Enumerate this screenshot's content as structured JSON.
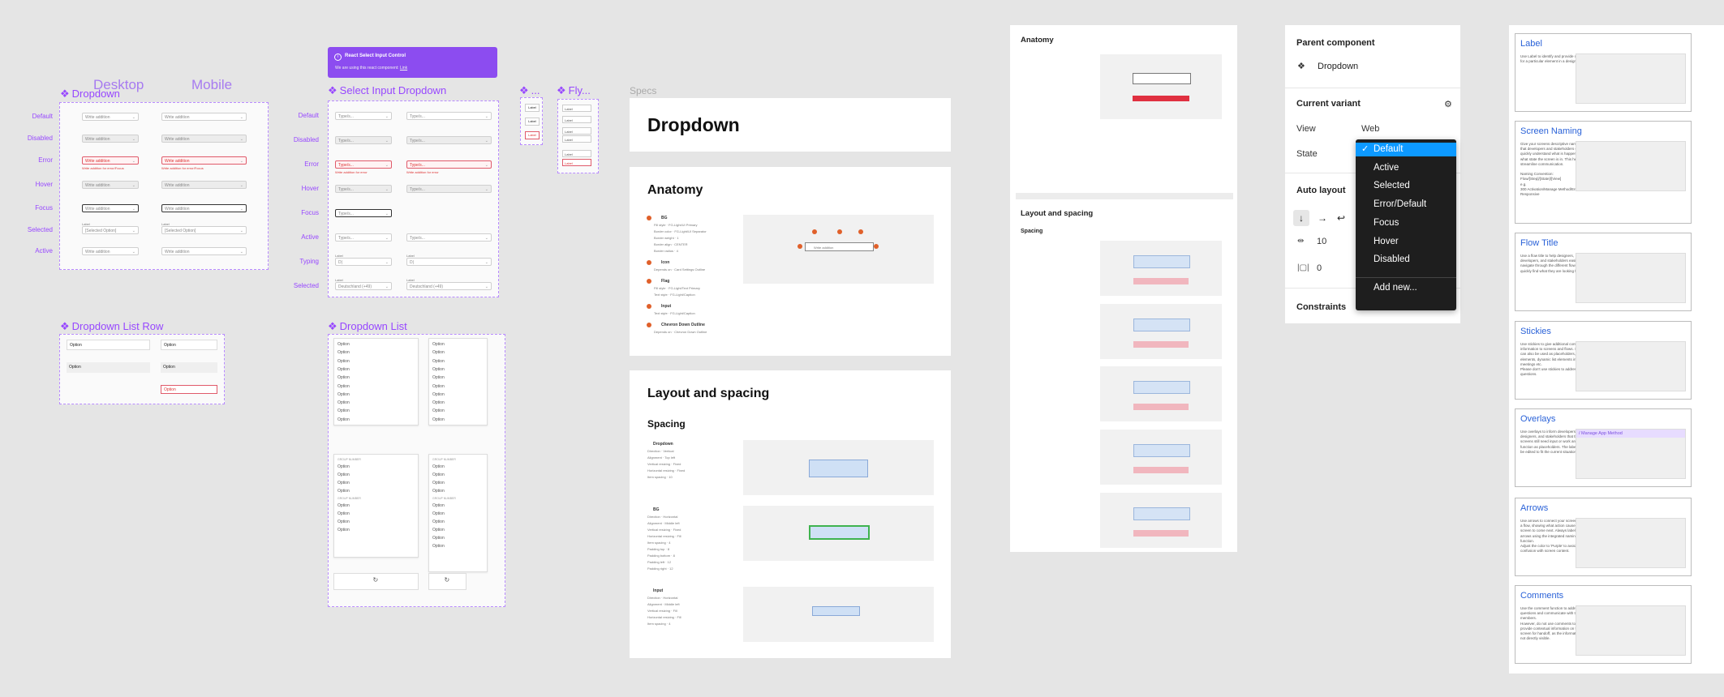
{
  "columns": {
    "desktop": "Desktop",
    "mobile": "Mobile",
    "specs": "Specs"
  },
  "dropdown": {
    "title": "Dropdown",
    "row_labels": [
      "Default",
      "Disabled",
      "Error",
      "Hover",
      "Focus",
      "Selected",
      "Active"
    ],
    "placeholder": "Write addition",
    "error_text": "Write addition for error/Focus",
    "selected_label": "Label",
    "selected_value": "[Selected Option]"
  },
  "select_input": {
    "title": "Select Input Dropdown",
    "row_labels": [
      "Default",
      "Disabled",
      "Error",
      "Hover",
      "Focus",
      "Active",
      "Typing",
      "Selected"
    ],
    "placeholder": "Type/s...",
    "error_text": "Write addition for error",
    "typing_value": "D|",
    "selected_value": "Deutschland (+49)",
    "label": "Label"
  },
  "small_frames": {
    "ellipsis": "...",
    "fly": "Fly...",
    "label": "Label"
  },
  "banner": {
    "title": "React Select Input Control",
    "text": "We are using this react component:",
    "link": "Link",
    "color": "#8c4cf0"
  },
  "list_row": {
    "title": "Dropdown List Row",
    "option": "Option"
  },
  "list": {
    "title": "Dropdown List",
    "option": "Option",
    "group": "GROUP NUMBER",
    "spinner": "↻"
  },
  "specs_doc": {
    "title": "Dropdown",
    "anatomy": "Anatomy",
    "anatomy_items": [
      {
        "num": "1",
        "name": "BG",
        "props": [
          "Fill style · FG-Light/UI Primary",
          "Border color · FG-Light/UI Separator",
          "Border weight · 1",
          "Border align · CENTER",
          "Border radius · 4"
        ]
      },
      {
        "num": "2",
        "name": "Icon",
        "props": [
          "Depends on · Card Settings Outline"
        ]
      },
      {
        "num": "3",
        "name": "Flag",
        "props": [
          "Fill style · FG-Light/Text Primary",
          "Text style · FG-Light/Caption"
        ]
      },
      {
        "num": "4",
        "name": "Input",
        "props": [
          "Text style · FG-Light/Caption"
        ]
      },
      {
        "num": "5",
        "name": "Chevron Down Outline",
        "props": [
          "Depends on · Chevron Down Outline"
        ]
      }
    ],
    "layout": "Layout and spacing",
    "spacing": "Spacing",
    "spacing_items": [
      {
        "name": "Dropdown",
        "props": [
          "Direction · Vertical",
          "Alignment · Top left",
          "Vertical resizing · Fixed",
          "Horizontal resizing · Fixed",
          "Item spacing · 10"
        ]
      },
      {
        "name": "BG",
        "props": [
          "Direction · Horizontal",
          "Alignment · Middle left",
          "Vertical resizing · Fixed",
          "Horizontal resizing · Fill",
          "Item spacing · 4",
          "Padding top · 8",
          "Padding bottom · 8",
          "Padding left · 12",
          "Padding right · 12"
        ]
      },
      {
        "name": "Input",
        "props": [
          "Direction · Horizontal",
          "Alignment · Middle left",
          "Vertical resizing · Fill",
          "Horizontal resizing · Fill",
          "Item spacing · 4"
        ]
      }
    ],
    "preview_text": "Write addition"
  },
  "specs_doc2": {
    "anatomy": "Anatomy",
    "layout": "Layout and spacing",
    "spacing": "Spacing"
  },
  "props_panel": {
    "parent_component": "Parent component",
    "component_name": "Dropdown",
    "current_variant": "Current variant",
    "view_label": "View",
    "view_value": "Web",
    "state_label": "State",
    "auto_layout": "Auto layout",
    "spacing_value": "10",
    "padding_value": "0",
    "constraints": "Constraints",
    "menu": {
      "items": [
        "Default",
        "Active",
        "Selected",
        "Error/Default",
        "Focus",
        "Hover",
        "Disabled"
      ],
      "selected_index": 0,
      "add_new": "Add new...",
      "bg": "#1e1e1e",
      "highlight": "#0d99ff"
    }
  },
  "docs": [
    {
      "title": "Label",
      "desc": "Use Label to identify and provide context for a particular element in a design file."
    },
    {
      "title": "Screen Naming",
      "desc": "Give your screens descriptive names so that developers and stakeholders can quickly understand what is happening and what state the screen is in. This helps to streamline communication.\n\nNaming Convention:\nFlow/[Step]/[State]/[View]\ne.g.\n300 Activation/Manage Method/Error/ Responsive"
    },
    {
      "title": "Flow Title",
      "desc": "Use a flow title to help designers, developers, and stakeholders easily navigate through the different flows and quickly find what they are looking for."
    },
    {
      "title": "Stickies",
      "desc": "Use stickies to give additional context and information to screens and flows. Stickies can also be used as placeholders, flow elements, dynamic list elements in meetings etc.\nPlease don't use stickies to address questions."
    },
    {
      "title": "Overlays",
      "desc": "Use overlays to inform developers, designers, and stakeholders that these screens still need input or work and function as placeholders. The label can be edited to fit the current situation.",
      "thumb_text": "/ Manage App Method"
    },
    {
      "title": "Arrows",
      "desc": "Use arrows to connect your screens into a flow, showing what action causes which screen to come next. Always label your arrows using the integrated naming function.\nAdjust the color to 'Purple' to avoid confusion with screen content."
    },
    {
      "title": "Comments",
      "desc": "Use the comment function to address questions and communicate with team members.\nHowever, do not use comments to provide contextual information on the screen for handoff, as the information is not directly visible."
    }
  ]
}
